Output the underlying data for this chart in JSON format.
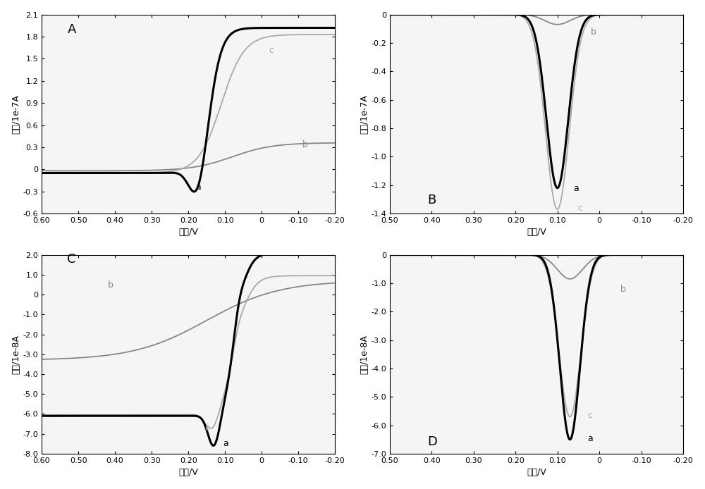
{
  "panel_A": {
    "xlabel": "电压/V",
    "ylabel": "电流/1e-7A",
    "xlim": [
      0.6,
      -0.2
    ],
    "ylim": [
      -0.6,
      2.1
    ],
    "yticks": [
      -0.6,
      -0.3,
      0.0,
      0.3,
      0.6,
      0.9,
      1.2,
      1.5,
      1.8,
      2.1
    ],
    "xticks": [
      0.6,
      0.5,
      0.4,
      0.3,
      0.2,
      0.1,
      0.0,
      -0.1,
      -0.2
    ],
    "xtick_labels": [
      "0.60",
      "0.50",
      "0.40",
      "0.30",
      "0.20",
      "0.10",
      "0",
      "-0.10",
      "-0.20"
    ]
  },
  "panel_B": {
    "xlabel": "电压/V",
    "ylabel": "电流/1e-7A",
    "xlim": [
      0.5,
      -0.2
    ],
    "ylim": [
      0.0,
      -1.4
    ],
    "yticks": [
      0.0,
      -0.2,
      -0.4,
      -0.6,
      -0.8,
      -1.0,
      -1.2,
      -1.4
    ],
    "ytick_labels": [
      "0",
      "-0.2",
      "-0.4",
      "-0.6",
      "-0.8",
      "-1.0",
      "-1.2",
      "-1.4"
    ],
    "xticks": [
      0.5,
      0.4,
      0.3,
      0.2,
      0.1,
      0.0,
      -0.1,
      -0.2
    ],
    "xtick_labels": [
      "0.50",
      "0.40",
      "0.30",
      "0.20",
      "0.10",
      "0",
      "-0.10",
      "-0.20"
    ]
  },
  "panel_C": {
    "xlabel": "电压/V",
    "ylabel": "电流/1e-8A",
    "xlim": [
      0.6,
      -0.2
    ],
    "ylim": [
      -8.0,
      2.0
    ],
    "yticks": [
      -8.0,
      -7.0,
      -6.0,
      -5.0,
      -4.0,
      -3.0,
      -2.0,
      -1.0,
      0.0,
      1.0,
      2.0
    ],
    "ytick_labels": [
      "-8.0",
      "-7.0",
      "-6.0",
      "-5.0",
      "-4.0",
      "-3.0",
      "-2.0",
      "-1.0",
      "0",
      "1.0",
      "2.0"
    ],
    "xticks": [
      0.6,
      0.5,
      0.4,
      0.3,
      0.2,
      0.1,
      0.0,
      -0.1,
      -0.2
    ],
    "xtick_labels": [
      "0.60",
      "0.50",
      "0.40",
      "0.30",
      "0.20",
      "0.10",
      "0",
      "-0.10",
      "-0.20"
    ]
  },
  "panel_D": {
    "xlabel": "电压/V",
    "ylabel": "电流/1e-8A",
    "xlim": [
      0.5,
      -0.2
    ],
    "ylim": [
      0.0,
      -7.0
    ],
    "yticks": [
      0.0,
      -1.0,
      -2.0,
      -3.0,
      -4.0,
      -5.0,
      -6.0,
      -7.0
    ],
    "ytick_labels": [
      "0",
      "-1.0",
      "-2.0",
      "-3.0",
      "-4.0",
      "-5.0",
      "-6.0",
      "-7.0"
    ],
    "xticks": [
      0.5,
      0.4,
      0.3,
      0.2,
      0.1,
      0.0,
      -0.1,
      -0.2
    ],
    "xtick_labels": [
      "0.50",
      "0.40",
      "0.30",
      "0.20",
      "0.10",
      "0",
      "-0.10",
      "-0.20"
    ]
  },
  "colors": {
    "a": "#000000",
    "b": "#888888",
    "c": "#aaaaaa"
  },
  "linewidths": {
    "a": 2.2,
    "b": 1.3,
    "c": 1.3
  },
  "bg_color": "#f0f0f0"
}
